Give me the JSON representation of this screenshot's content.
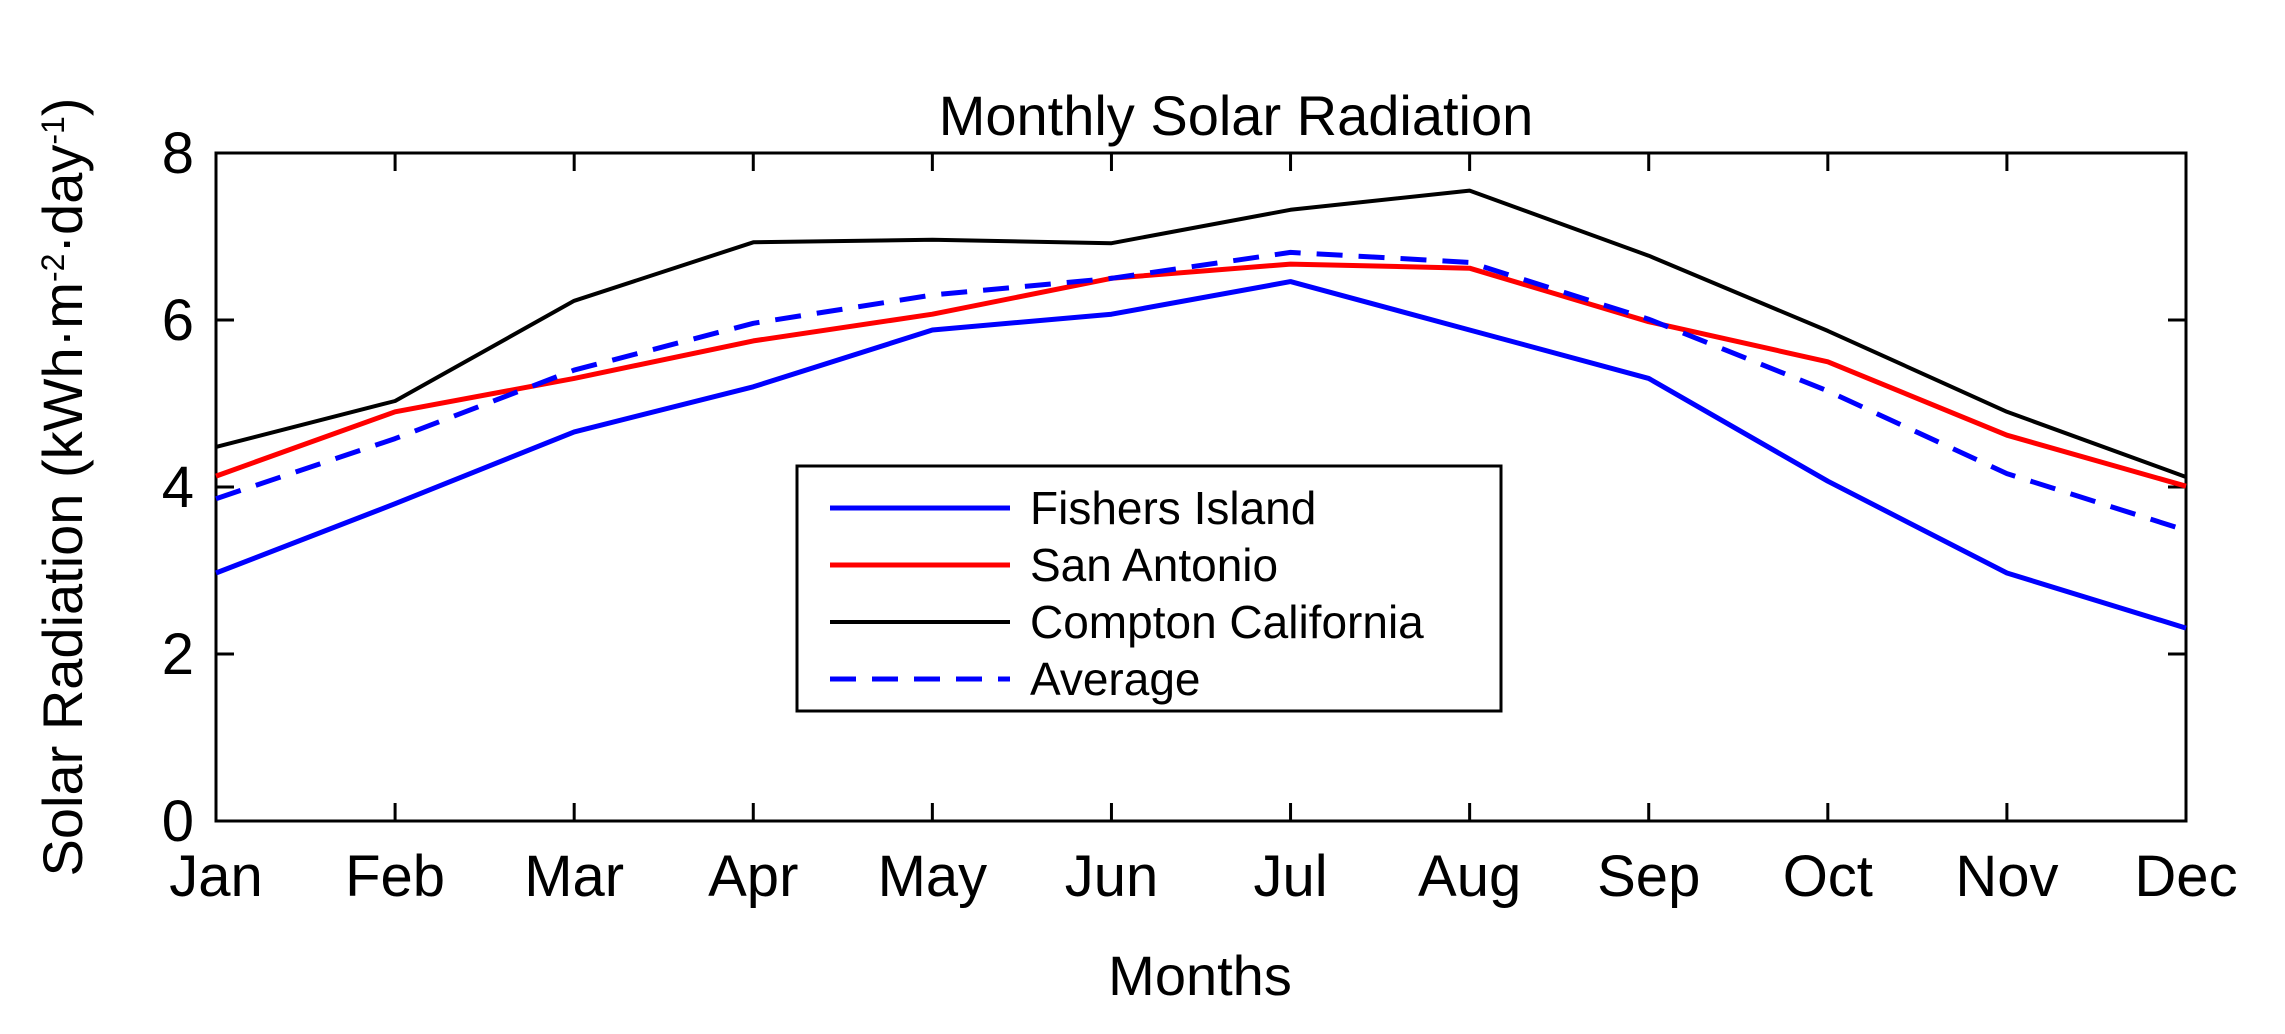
{
  "chart_data": {
    "type": "line",
    "title": "Monthly Solar Radiation",
    "xlabel": "Months",
    "ylabel": {
      "main": "Solar Radiation (kWh·m",
      "exp1": "-2",
      "mid": "·day",
      "exp2": "-1",
      "end": ")"
    },
    "categories": [
      "Jan",
      "Feb",
      "Mar",
      "Apr",
      "May",
      "Jun",
      "Jul",
      "Aug",
      "Sep",
      "Oct",
      "Nov",
      "Dec"
    ],
    "ylim": [
      0,
      8
    ],
    "yticks": [
      0,
      2,
      4,
      6,
      8
    ],
    "yticklabels": [
      "0",
      "2",
      "4",
      "6",
      "8"
    ],
    "grid": false,
    "legend_position": "center",
    "series": [
      {
        "name": "Fishers Island",
        "color": "#0000ff",
        "style": "solid",
        "values": [
          2.97,
          3.8,
          4.66,
          5.2,
          5.88,
          6.07,
          6.46,
          5.88,
          5.3,
          4.07,
          2.97,
          2.31
        ]
      },
      {
        "name": "San Antonio",
        "color": "#ff0000",
        "style": "solid",
        "values": [
          4.13,
          4.9,
          5.3,
          5.75,
          6.07,
          6.5,
          6.67,
          6.62,
          5.98,
          5.5,
          4.62,
          4.01
        ]
      },
      {
        "name": "Compton California",
        "color": "#000000",
        "style": "solid",
        "values": [
          4.48,
          5.03,
          6.23,
          6.93,
          6.96,
          6.92,
          7.32,
          7.55,
          6.77,
          5.87,
          4.9,
          4.12
        ]
      },
      {
        "name": "Average",
        "color": "#0000ff",
        "style": "dashed",
        "values": [
          3.86,
          4.58,
          5.4,
          5.96,
          6.3,
          6.5,
          6.81,
          6.69,
          6.01,
          5.15,
          4.16,
          3.48
        ]
      }
    ]
  }
}
